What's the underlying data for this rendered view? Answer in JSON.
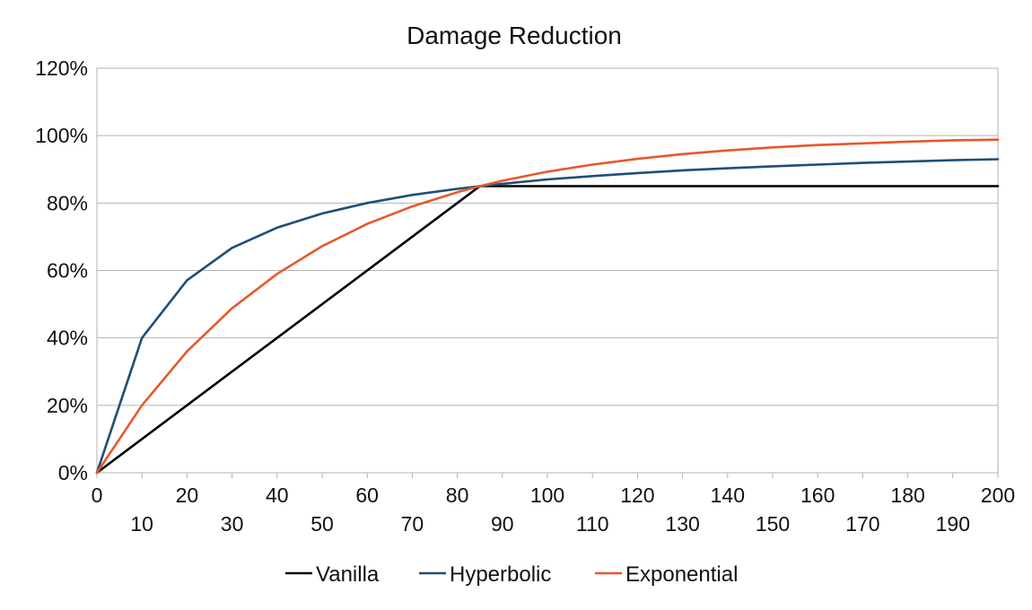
{
  "chart_data": {
    "type": "line",
    "title": "Damage Reduction",
    "xlabel": "",
    "ylabel": "",
    "xlim": [
      0,
      200
    ],
    "ylim": [
      0,
      1.2
    ],
    "x_ticks": [
      "0",
      "10",
      "20",
      "30",
      "40",
      "50",
      "60",
      "70",
      "80",
      "90",
      "100",
      "110",
      "120",
      "130",
      "140",
      "150",
      "160",
      "170",
      "180",
      "190",
      "200"
    ],
    "y_ticks": [
      "0%",
      "20%",
      "40%",
      "60%",
      "80%",
      "100%",
      "120%"
    ],
    "grid": true,
    "legend_position": "bottom",
    "series": [
      {
        "name": "Vanilla",
        "color": "#000000",
        "x": [
          0,
          85,
          200
        ],
        "y": [
          0,
          0.85,
          0.85
        ]
      },
      {
        "name": "Hyperbolic",
        "color": "#1f4e79",
        "x": [
          0,
          10,
          20,
          30,
          40,
          50,
          60,
          70,
          80,
          85,
          90,
          100,
          110,
          120,
          130,
          140,
          150,
          160,
          170,
          180,
          190,
          200
        ],
        "y": [
          0,
          0.4,
          0.571,
          0.667,
          0.727,
          0.769,
          0.8,
          0.824,
          0.842,
          0.85,
          0.857,
          0.87,
          0.88,
          0.889,
          0.897,
          0.903,
          0.909,
          0.914,
          0.919,
          0.923,
          0.927,
          0.93
        ]
      },
      {
        "name": "Exponential",
        "color": "#e8572b",
        "x": [
          0,
          10,
          20,
          30,
          40,
          50,
          60,
          70,
          80,
          85,
          90,
          100,
          110,
          120,
          130,
          140,
          150,
          160,
          170,
          180,
          190,
          200
        ],
        "y": [
          0,
          0.2,
          0.36,
          0.488,
          0.59,
          0.672,
          0.738,
          0.79,
          0.832,
          0.85,
          0.866,
          0.893,
          0.914,
          0.931,
          0.945,
          0.956,
          0.965,
          0.972,
          0.977,
          0.982,
          0.986,
          0.988
        ]
      }
    ]
  }
}
